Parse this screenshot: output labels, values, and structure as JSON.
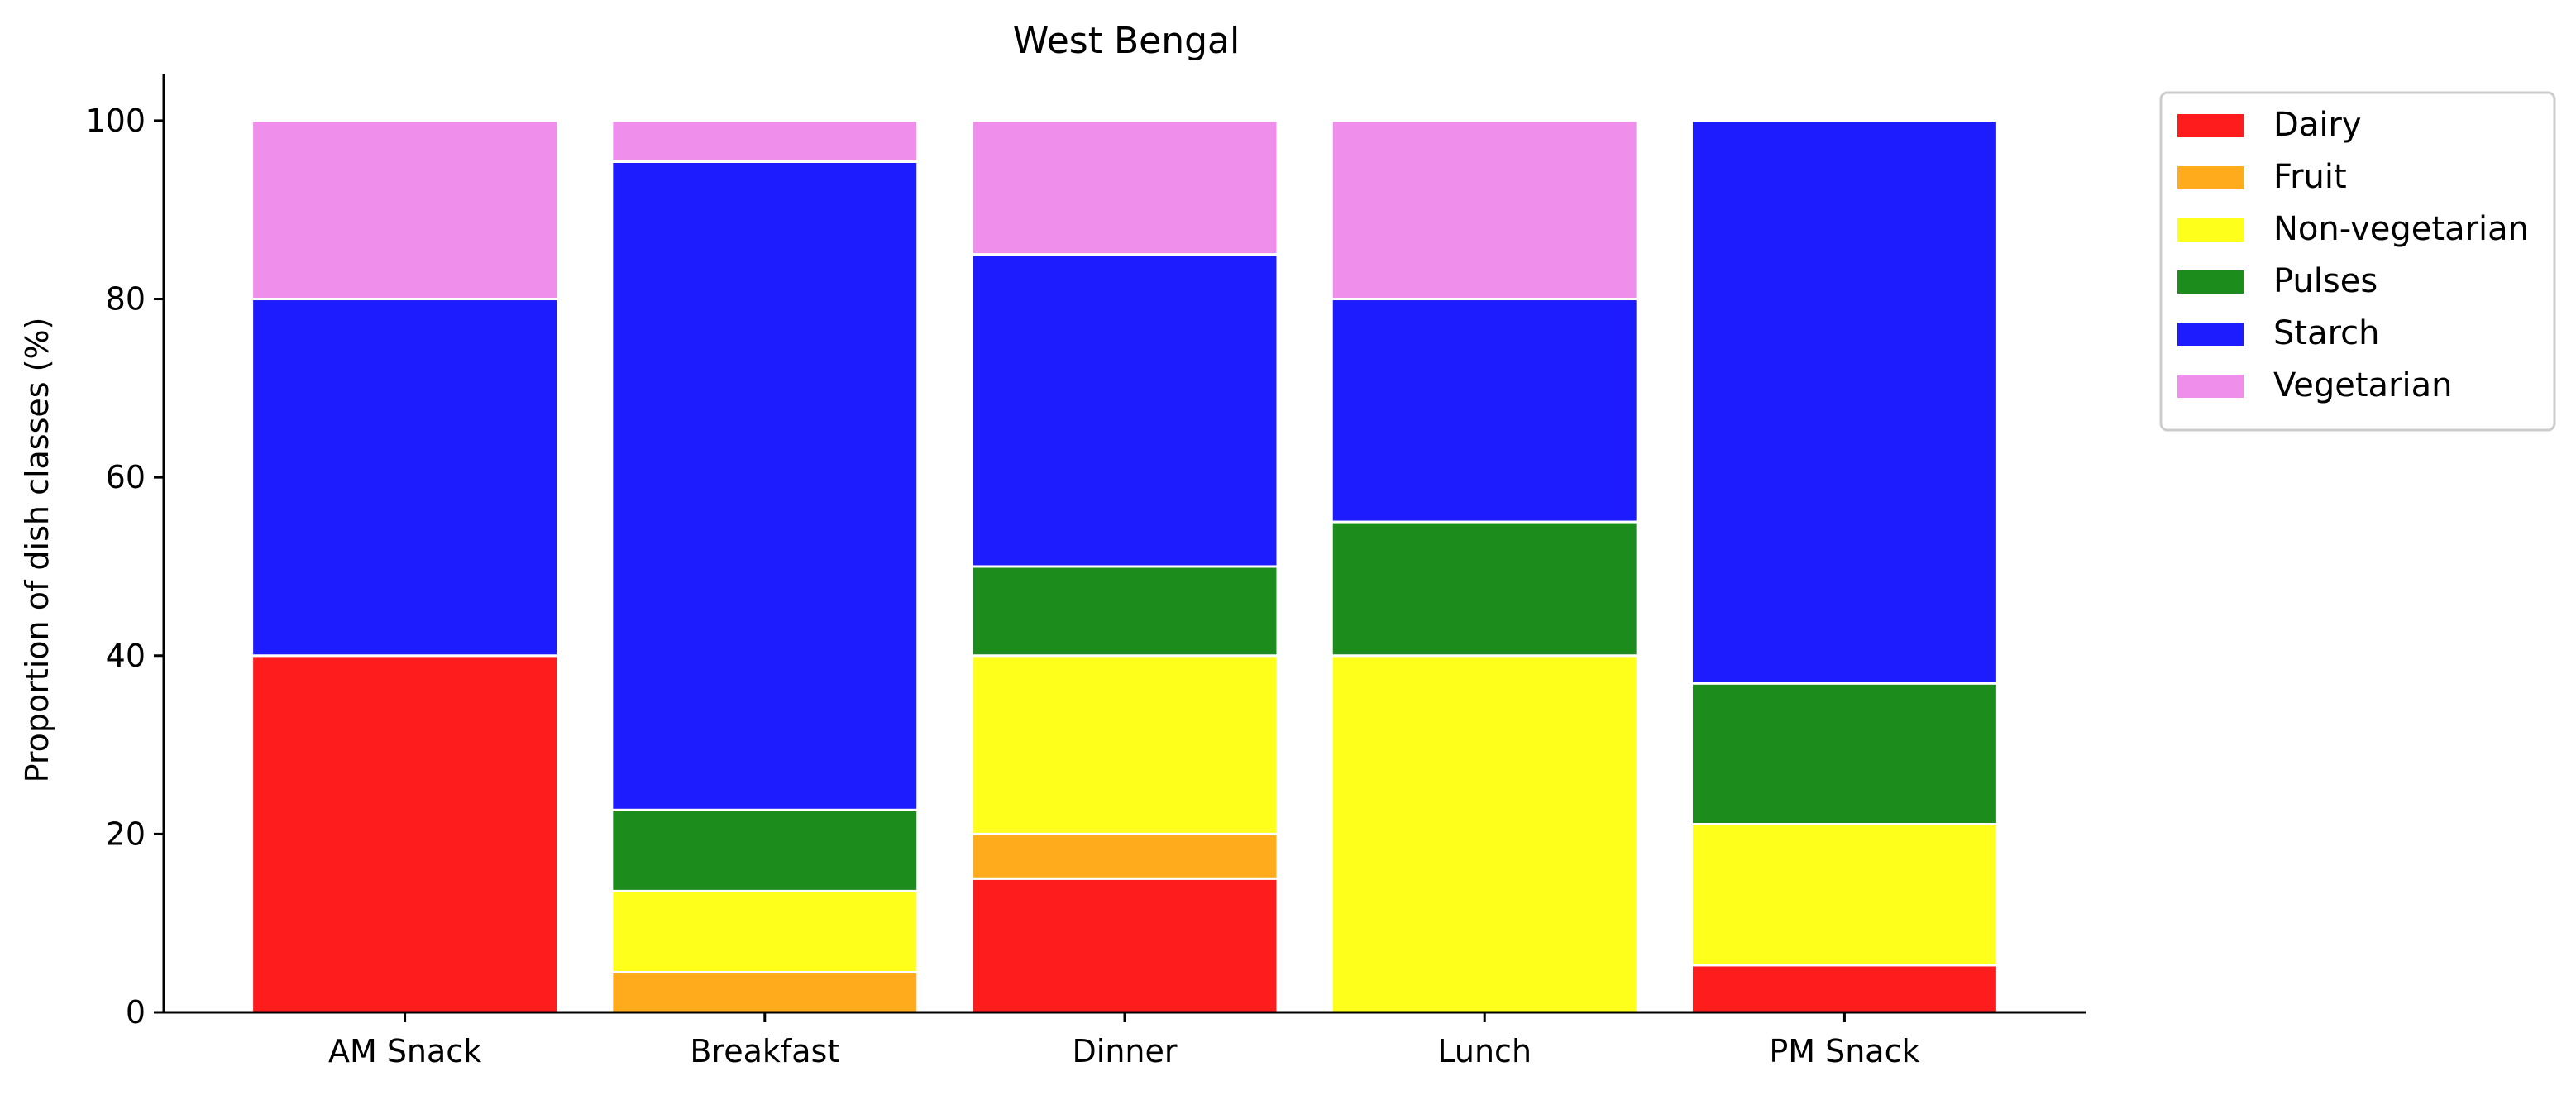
{
  "chart_data": {
    "type": "bar",
    "stacked": true,
    "title": "West Bengal",
    "xlabel": "",
    "ylabel": "Proportion of dish classes (%)",
    "ylim": [
      0,
      105
    ],
    "yticks": [
      0,
      20,
      40,
      60,
      80,
      100
    ],
    "grid": false,
    "legend_position": "outside-top-right",
    "categories": [
      "AM Snack",
      "Breakfast",
      "Dinner",
      "Lunch",
      "PM Snack"
    ],
    "series": [
      {
        "name": "Dairy",
        "color": "#ff1c1c",
        "values": [
          40,
          0,
          15,
          0,
          5.3
        ]
      },
      {
        "name": "Fruit",
        "color": "#ffab1c",
        "values": [
          0,
          4.5,
          5,
          0,
          0
        ]
      },
      {
        "name": "Non-vegetarian",
        "color": "#ffff1c",
        "values": [
          0,
          9.1,
          20,
          40,
          15.8
        ]
      },
      {
        "name": "Pulses",
        "color": "#1c8c1c",
        "values": [
          0,
          9.1,
          10,
          15,
          15.8
        ]
      },
      {
        "name": "Starch",
        "color": "#1c1cff",
        "values": [
          40,
          72.7,
          35,
          25,
          63.1
        ]
      },
      {
        "name": "Vegetarian",
        "color": "#f08eec",
        "values": [
          20,
          4.6,
          15,
          20,
          0
        ]
      }
    ]
  }
}
